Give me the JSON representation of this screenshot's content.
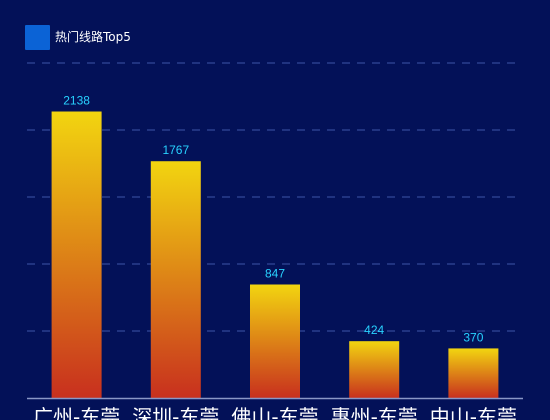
{
  "chart_data": {
    "type": "bar",
    "categories": [
      "广州-东莞",
      "深圳-东莞",
      "佛山-东莞",
      "惠州-东莞",
      "中山-东莞"
    ],
    "series": [
      {
        "name": "热门线路Top5",
        "values": [
          2138,
          1767,
          847,
          424,
          370
        ]
      }
    ],
    "ylim": [
      0,
      2500
    ],
    "grid": true,
    "legend": "top-left",
    "colors": {
      "background": "#031158",
      "legend_swatch": "#0b63d6",
      "bar_top": "#f2d510",
      "bar_bottom": "#c8301e",
      "value_label": "#28d2ff",
      "grid": "#2b3f8e",
      "axis": "#8a97c6",
      "tick_label": "#ffffff"
    }
  }
}
